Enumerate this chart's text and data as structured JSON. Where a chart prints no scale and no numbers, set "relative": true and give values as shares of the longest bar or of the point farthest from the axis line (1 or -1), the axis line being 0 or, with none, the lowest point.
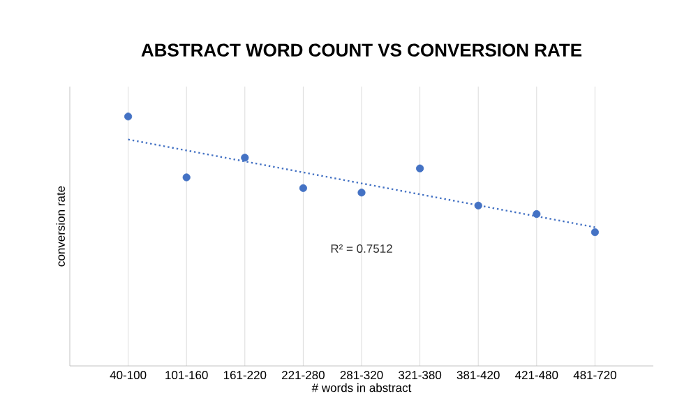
{
  "chart_data": {
    "type": "scatter",
    "title": "ABSTRACT WORD COUNT VS CONVERSION RATE",
    "xlabel": "# words in abstract",
    "ylabel": "conversion rate",
    "categories": [
      "40-100",
      "101-160",
      "161-220",
      "221-280",
      "281-320",
      "321-380",
      "381-420",
      "421-480",
      "481-720"
    ],
    "relative": true,
    "grid": "x",
    "marker": "circle",
    "series": [
      {
        "color": "#4472c4",
        "values": [
          1,
          0.756,
          0.835,
          0.713,
          0.695,
          0.792,
          0.643,
          0.609,
          0.536
        ]
      },
      {
        "type": "line",
        "line_style": "dotted",
        "marker": "none",
        "color": "#4472c4",
        "x": [
          "40-100",
          "481-720"
        ],
        "values": [
          0.908,
          0.556
        ]
      }
    ],
    "annotations": [
      "R² = 0.7512"
    ]
  }
}
